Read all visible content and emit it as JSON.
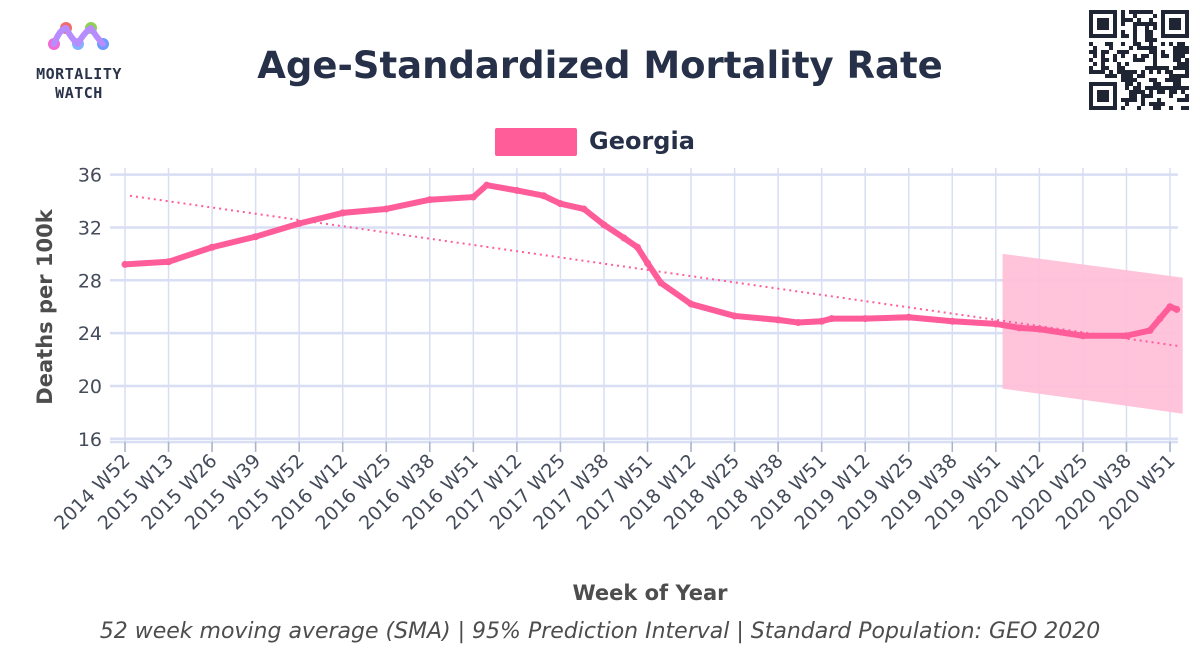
{
  "logo": {
    "line1": "MORTALITY",
    "line2": "WATCH"
  },
  "colors": {
    "series": "#ff5c9a",
    "band": "#ffc0d8",
    "trend": "#ff5c9a",
    "grid": "#d8def3"
  },
  "chart_data": {
    "type": "line",
    "title": "Age-Standardized Mortality Rate",
    "legend": [
      {
        "label": "Georgia",
        "color": "#ff5c9a"
      }
    ],
    "legend_position": "top-center",
    "xlabel": "Week of Year",
    "ylabel": "Deaths per 100k",
    "caption": "52 week moving average (SMA) | 95% Prediction Interval | Standard Population: GEO 2020",
    "ylim": [
      15,
      36.5
    ],
    "yticks": [
      16,
      20,
      24,
      28,
      32,
      36
    ],
    "grid": true,
    "xticks": [
      "2014 W52",
      "2015 W13",
      "2015 W26",
      "2015 W39",
      "2015 W52",
      "2016 W12",
      "2016 W25",
      "2016 W38",
      "2016 W51",
      "2017 W12",
      "2017 W25",
      "2017 W38",
      "2017 W51",
      "2018 W12",
      "2018 W25",
      "2018 W38",
      "2018 W51",
      "2019 W12",
      "2019 W25",
      "2019 W38",
      "2019 W51",
      "2020 W12",
      "2020 W25",
      "2020 W38",
      "2020 W51"
    ],
    "series": [
      {
        "name": "Georgia",
        "x": [
          "2014 W52",
          "2015 W13",
          "2015 W26",
          "2015 W39",
          "2015 W52",
          "2016 W12",
          "2016 W25",
          "2016 W38",
          "2016 W51",
          "2017 W03",
          "2017 W12",
          "2017 W20",
          "2017 W25",
          "2017 W32",
          "2017 W38",
          "2017 W44",
          "2017 W48",
          "2017 W51",
          "2018 W03",
          "2018 W12",
          "2018 W25",
          "2018 W38",
          "2018 W44",
          "2018 W51",
          "2019 W02",
          "2019 W12",
          "2019 W25",
          "2019 W38",
          "2019 W51",
          "2020 W06",
          "2020 W12",
          "2020 W25",
          "2020 W38",
          "2020 W45",
          "2020 W48",
          "2020 W51",
          "2020 W53"
        ],
        "values": [
          29.2,
          29.4,
          30.5,
          31.3,
          32.3,
          33.1,
          33.4,
          34.1,
          34.3,
          35.2,
          34.8,
          34.4,
          33.8,
          33.4,
          32.2,
          31.2,
          30.5,
          29.3,
          27.8,
          26.2,
          25.3,
          25.0,
          24.8,
          24.9,
          25.1,
          25.1,
          25.2,
          24.9,
          24.7,
          24.4,
          24.3,
          23.8,
          23.8,
          24.2,
          25.1,
          26.0,
          25.8
        ]
      },
      {
        "name": "Trend",
        "style": "dotted",
        "x": [
          "2014 W52",
          "2020 W53"
        ],
        "values": [
          34.4,
          23.0
        ]
      }
    ],
    "prediction_interval": {
      "x": [
        "2020 W01",
        "2020 W53"
      ],
      "lower": [
        19.8,
        17.9
      ],
      "upper": [
        30.0,
        28.2
      ]
    }
  }
}
